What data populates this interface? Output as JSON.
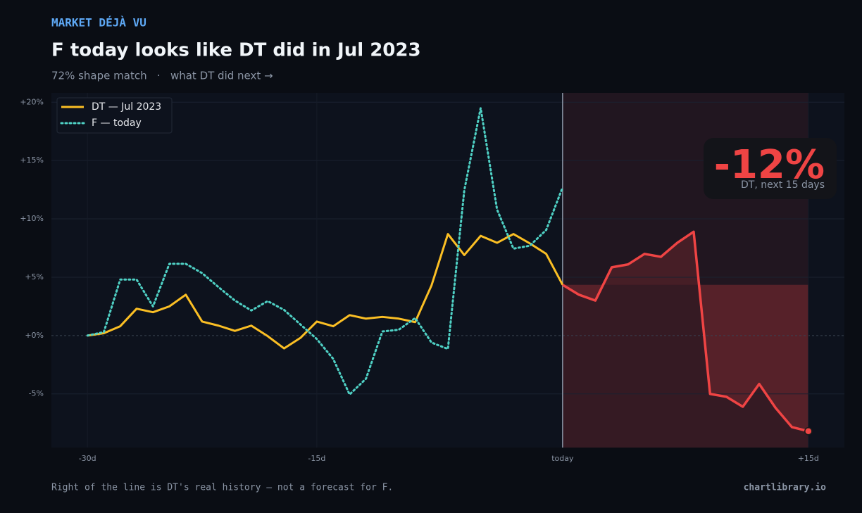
{
  "chart_data": {
    "type": "line",
    "kicker": "MARKET DÉJÀ VU",
    "title": "F today looks like DT did in Jul 2023",
    "subtitle": "72% shape match   ·   what DT did next →",
    "footnote": "Right of the line is DT's real history — not a forecast for F.",
    "source": "chartlibrary.io",
    "annotation": {
      "text": "-12%",
      "subtext": "DT, next 15 days"
    },
    "x": [
      0,
      1,
      2,
      3,
      4,
      5,
      6,
      7,
      8,
      9,
      10,
      11,
      12,
      13,
      14,
      15,
      16,
      17,
      18,
      19,
      20,
      21,
      22,
      23,
      24,
      25,
      26,
      27,
      28,
      29,
      30,
      31,
      32,
      33,
      34,
      35,
      36,
      37,
      38,
      39,
      40,
      41,
      42,
      43,
      44
    ],
    "xlim": [
      -2.2,
      46.2
    ],
    "xticks": [
      {
        "value": 0,
        "label": "-30d"
      },
      {
        "value": 14,
        "label": "-15d"
      },
      {
        "value": 29,
        "label": "today"
      },
      {
        "value": 44,
        "label": "+15d"
      }
    ],
    "ylim": [
      -9.6,
      20.8
    ],
    "yticks": [
      {
        "value": -5,
        "label": "-5%"
      },
      {
        "value": 0,
        "label": "+0%"
      },
      {
        "value": 5,
        "label": "+5%"
      },
      {
        "value": 10,
        "label": "+10%"
      },
      {
        "value": 15,
        "label": "+15%"
      },
      {
        "value": 20,
        "label": "+20%"
      }
    ],
    "grid": true,
    "legend": "upper-left",
    "series": [
      {
        "name": "DT — Jul 2023",
        "color": "#fbbf24",
        "style": "solid",
        "values": [
          0,
          0.2,
          0.8,
          2.3,
          2.0,
          2.5,
          3.5,
          1.2,
          0.85,
          0.4,
          0.85,
          -0.05,
          -1.1,
          -0.2,
          1.2,
          0.8,
          1.75,
          1.45,
          1.6,
          1.45,
          1.15,
          4.3,
          8.7,
          6.9,
          8.55,
          7.95,
          8.7,
          7.9,
          7.0,
          4.35,
          null,
          null,
          null,
          null,
          null,
          null,
          null,
          null,
          null,
          null,
          null,
          null,
          null,
          null,
          null
        ]
      },
      {
        "name": "F — today",
        "color": "#4fd1c5",
        "style": "dotted",
        "values": [
          0,
          0.3,
          4.8,
          4.8,
          2.5,
          6.15,
          6.15,
          5.35,
          4.15,
          3.0,
          2.15,
          2.95,
          2.2,
          0.95,
          -0.3,
          -2.0,
          -5.05,
          -3.7,
          0.35,
          0.5,
          1.5,
          -0.6,
          -1.15,
          12.45,
          19.5,
          10.8,
          7.45,
          7.7,
          9.05,
          12.7,
          null,
          null,
          null,
          null,
          null,
          null,
          null,
          null,
          null,
          null,
          null,
          null,
          null,
          null,
          null
        ]
      },
      {
        "color": "#ef4444",
        "style": "solid",
        "values": [
          null,
          null,
          null,
          null,
          null,
          null,
          null,
          null,
          null,
          null,
          null,
          null,
          null,
          null,
          null,
          null,
          null,
          null,
          null,
          null,
          null,
          null,
          null,
          null,
          null,
          null,
          null,
          null,
          null,
          4.35,
          3.5,
          3.0,
          5.85,
          6.1,
          7.0,
          6.75,
          7.95,
          8.9,
          -5.0,
          -5.25,
          -6.1,
          -4.15,
          -6.2,
          -7.85,
          -8.2
        ]
      }
    ]
  }
}
